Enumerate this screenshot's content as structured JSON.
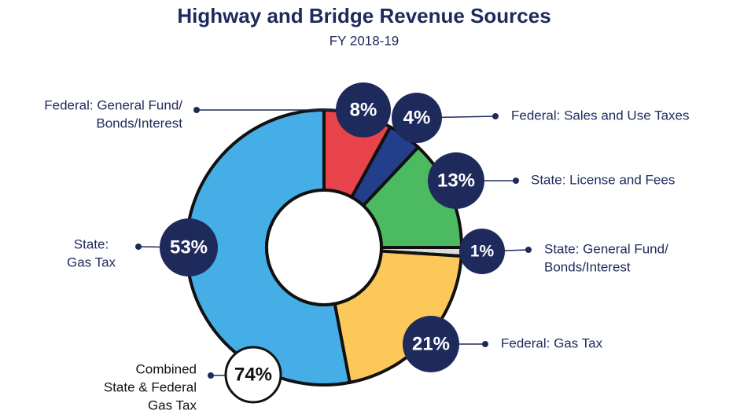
{
  "chart_data": {
    "type": "pie",
    "title": "Highway and Bridge Revenue Sources",
    "subtitle": "FY 2018-19",
    "categories": [
      [
        "Federal: General Fund/",
        "Bonds/Interest"
      ],
      [
        "Federal: Sales and Use Taxes"
      ],
      [
        "State: License and Fees"
      ],
      [
        "State: General Fund/",
        "Bonds/Interest"
      ],
      [
        "Federal: Gas Tax"
      ],
      [
        "State:",
        "Gas Tax"
      ]
    ],
    "values": [
      8,
      4,
      13,
      1,
      21,
      53
    ],
    "value_labels": [
      "8%",
      "4%",
      "13%",
      "1%",
      "21%",
      "53%"
    ],
    "colors": [
      "#e8424b",
      "#233f8c",
      "#4cba61",
      "#d9dcd9",
      "#fcc85a",
      "#45aee6"
    ],
    "annotation": {
      "label": [
        "Combined",
        "State & Federal",
        "Gas Tax"
      ],
      "value": 74,
      "value_label": "74%"
    }
  }
}
